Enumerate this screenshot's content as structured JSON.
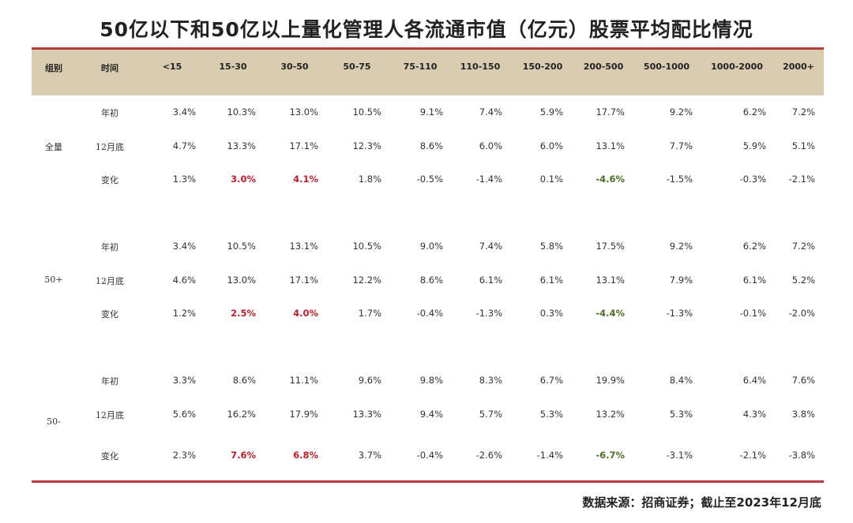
{
  "title": "50亿以下和50亿以上量化管理人各流通市值（亿元）股票平均配比情况",
  "source": "数据来源：招商证券；截止至2023年12月底",
  "colors": {
    "rule": "#b33b3b",
    "header_bg": "#d8ccb0",
    "positive_highlight": "#b51f2e",
    "negative_highlight": "#4c6e24"
  },
  "chart_data": {
    "type": "table",
    "columns": [
      "组别",
      "时间",
      "<15",
      "15-30",
      "30-50",
      "50-75",
      "75-110",
      "110-150",
      "150-200",
      "200-500",
      "500-1000",
      "1000-2000",
      "2000+"
    ],
    "groups": [
      {
        "name": "全量",
        "rows": [
          {
            "label": "年初",
            "values": [
              "3.4%",
              "10.3%",
              "13.0%",
              "10.5%",
              "9.1%",
              "7.4%",
              "5.9%",
              "17.7%",
              "9.2%",
              "6.2%",
              "7.2%"
            ]
          },
          {
            "label": "12月底",
            "values": [
              "4.7%",
              "13.3%",
              "17.1%",
              "12.3%",
              "8.6%",
              "6.0%",
              "6.0%",
              "13.1%",
              "7.7%",
              "5.9%",
              "5.1%"
            ]
          },
          {
            "label": "变化",
            "values": [
              "1.3%",
              "3.0%",
              "4.1%",
              "1.8%",
              "-0.5%",
              "-1.4%",
              "0.1%",
              "-4.6%",
              "-1.5%",
              "-0.3%",
              "-2.1%"
            ]
          }
        ]
      },
      {
        "name": "50+",
        "rows": [
          {
            "label": "年初",
            "values": [
              "3.4%",
              "10.5%",
              "13.1%",
              "10.5%",
              "9.0%",
              "7.4%",
              "5.8%",
              "17.5%",
              "9.2%",
              "6.2%",
              "7.2%"
            ]
          },
          {
            "label": "12月底",
            "values": [
              "4.6%",
              "13.0%",
              "17.1%",
              "12.2%",
              "8.6%",
              "6.1%",
              "6.1%",
              "13.1%",
              "7.9%",
              "6.1%",
              "5.2%"
            ]
          },
          {
            "label": "变化",
            "values": [
              "1.2%",
              "2.5%",
              "4.0%",
              "1.7%",
              "-0.4%",
              "-1.3%",
              "0.3%",
              "-4.4%",
              "-1.3%",
              "-0.1%",
              "-2.0%"
            ]
          }
        ]
      },
      {
        "name": "50-",
        "rows": [
          {
            "label": "年初",
            "values": [
              "3.3%",
              "8.6%",
              "11.1%",
              "9.6%",
              "9.8%",
              "8.3%",
              "6.7%",
              "19.9%",
              "8.4%",
              "6.4%",
              "7.6%"
            ]
          },
          {
            "label": "12月底",
            "values": [
              "5.6%",
              "16.2%",
              "17.9%",
              "13.3%",
              "9.4%",
              "5.7%",
              "5.3%",
              "13.2%",
              "5.3%",
              "4.3%",
              "3.8%"
            ]
          },
          {
            "label": "变化",
            "values": [
              "2.3%",
              "7.6%",
              "6.8%",
              "3.7%",
              "-0.4%",
              "-2.6%",
              "-1.4%",
              "-6.7%",
              "-3.1%",
              "-2.1%",
              "-3.8%"
            ]
          }
        ]
      }
    ],
    "highlighted_positive_columns": [
      "15-30",
      "30-50"
    ],
    "highlighted_negative_columns": [
      "200-500"
    ],
    "highlight_rows": [
      "变化"
    ]
  }
}
